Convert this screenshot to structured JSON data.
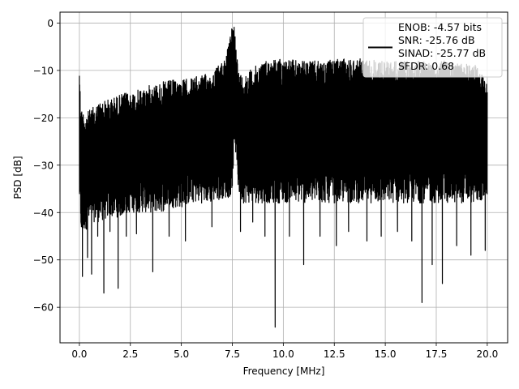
{
  "chart_data": {
    "type": "line",
    "xlabel": "Frequency [MHz]",
    "ylabel": "PSD [dB]",
    "xlim": [
      -0.95,
      21.0
    ],
    "ylim": [
      -67.5,
      2.3
    ],
    "xticks": [
      0.0,
      2.5,
      5.0,
      7.5,
      10.0,
      12.5,
      15.0,
      17.5,
      20.0
    ],
    "xtick_labels": [
      "0.0",
      "2.5",
      "5.0",
      "7.5",
      "10.0",
      "12.5",
      "15.0",
      "17.5",
      "20.0"
    ],
    "yticks": [
      0,
      -10,
      -20,
      -30,
      -40,
      -50,
      -60
    ],
    "ytick_labels": [
      "0",
      "−10",
      "−20",
      "−30",
      "−40",
      "−50",
      "−60"
    ],
    "grid": true,
    "legend_position": "top-right",
    "legend_lines": [
      "ENOB: -4.57 bits",
      "SNR: -25.76 dB",
      "SINAD: -25.77 dB",
      "SFDR: 0.68"
    ],
    "series": [
      {
        "color": "#000000",
        "x": [
          0.0,
          0.05,
          0.1,
          0.3,
          0.6,
          1.0,
          1.5,
          2.0,
          2.5,
          3.0,
          3.5,
          4.0,
          4.5,
          5.0,
          5.5,
          6.0,
          6.5,
          7.0,
          7.3,
          7.5,
          7.6,
          7.8,
          8.0,
          8.5,
          9.0,
          9.5,
          10.0,
          11.0,
          12.0,
          13.0,
          14.0,
          15.0,
          16.0,
          17.0,
          18.0,
          19.0,
          19.5,
          20.0
        ],
        "upper": [
          -7.2,
          -16.0,
          -18.0,
          -19.0,
          -18.0,
          -16.5,
          -16.0,
          -15.0,
          -14.5,
          -14.0,
          -13.0,
          -12.5,
          -12.0,
          -12.0,
          -11.5,
          -11.0,
          -10.5,
          -8.0,
          -5.0,
          -0.5,
          0.0,
          -10.0,
          -11.0,
          -9.5,
          -8.0,
          -7.5,
          -7.5,
          -8.0,
          -8.0,
          -7.5,
          -7.5,
          -8.0,
          -8.0,
          -8.0,
          -8.0,
          -8.5,
          -9.0,
          -12.0
        ],
        "lower": [
          -38.0,
          -42.0,
          -45.0,
          -44.0,
          -42.0,
          -42.0,
          -41.0,
          -41.0,
          -40.0,
          -40.0,
          -40.0,
          -40.0,
          -39.0,
          -39.0,
          -38.0,
          -38.0,
          -38.0,
          -37.0,
          -37.0,
          -36.0,
          -24.0,
          -36.0,
          -38.0,
          -38.0,
          -38.0,
          -38.0,
          -38.0,
          -38.0,
          -38.0,
          -38.0,
          -38.0,
          -38.0,
          -38.0,
          -38.0,
          -38.0,
          -38.0,
          -38.0,
          -37.0
        ],
        "dips": [
          [
            0.1,
            -43.0
          ],
          [
            0.15,
            -53.5
          ],
          [
            0.4,
            -49.5
          ],
          [
            0.6,
            -53.0
          ],
          [
            0.9,
            -45.0
          ],
          [
            1.2,
            -57.0
          ],
          [
            1.5,
            -44.0
          ],
          [
            1.9,
            -56.0
          ],
          [
            2.3,
            -45.0
          ],
          [
            2.8,
            -44.5
          ],
          [
            3.6,
            -52.5
          ],
          [
            4.4,
            -45.0
          ],
          [
            5.2,
            -46.0
          ],
          [
            6.5,
            -43.0
          ],
          [
            7.9,
            -44.0
          ],
          [
            8.5,
            -42.0
          ],
          [
            9.1,
            -45.0
          ],
          [
            9.6,
            -64.2
          ],
          [
            10.3,
            -45.0
          ],
          [
            11.0,
            -51.0
          ],
          [
            11.8,
            -45.0
          ],
          [
            12.6,
            -47.0
          ],
          [
            13.2,
            -44.0
          ],
          [
            14.1,
            -46.0
          ],
          [
            14.8,
            -45.0
          ],
          [
            15.6,
            -44.0
          ],
          [
            16.3,
            -46.0
          ],
          [
            16.8,
            -59.0
          ],
          [
            17.3,
            -51.0
          ],
          [
            17.8,
            -55.0
          ],
          [
            18.5,
            -47.0
          ],
          [
            19.2,
            -49.0
          ],
          [
            19.9,
            -48.0
          ]
        ]
      }
    ]
  }
}
